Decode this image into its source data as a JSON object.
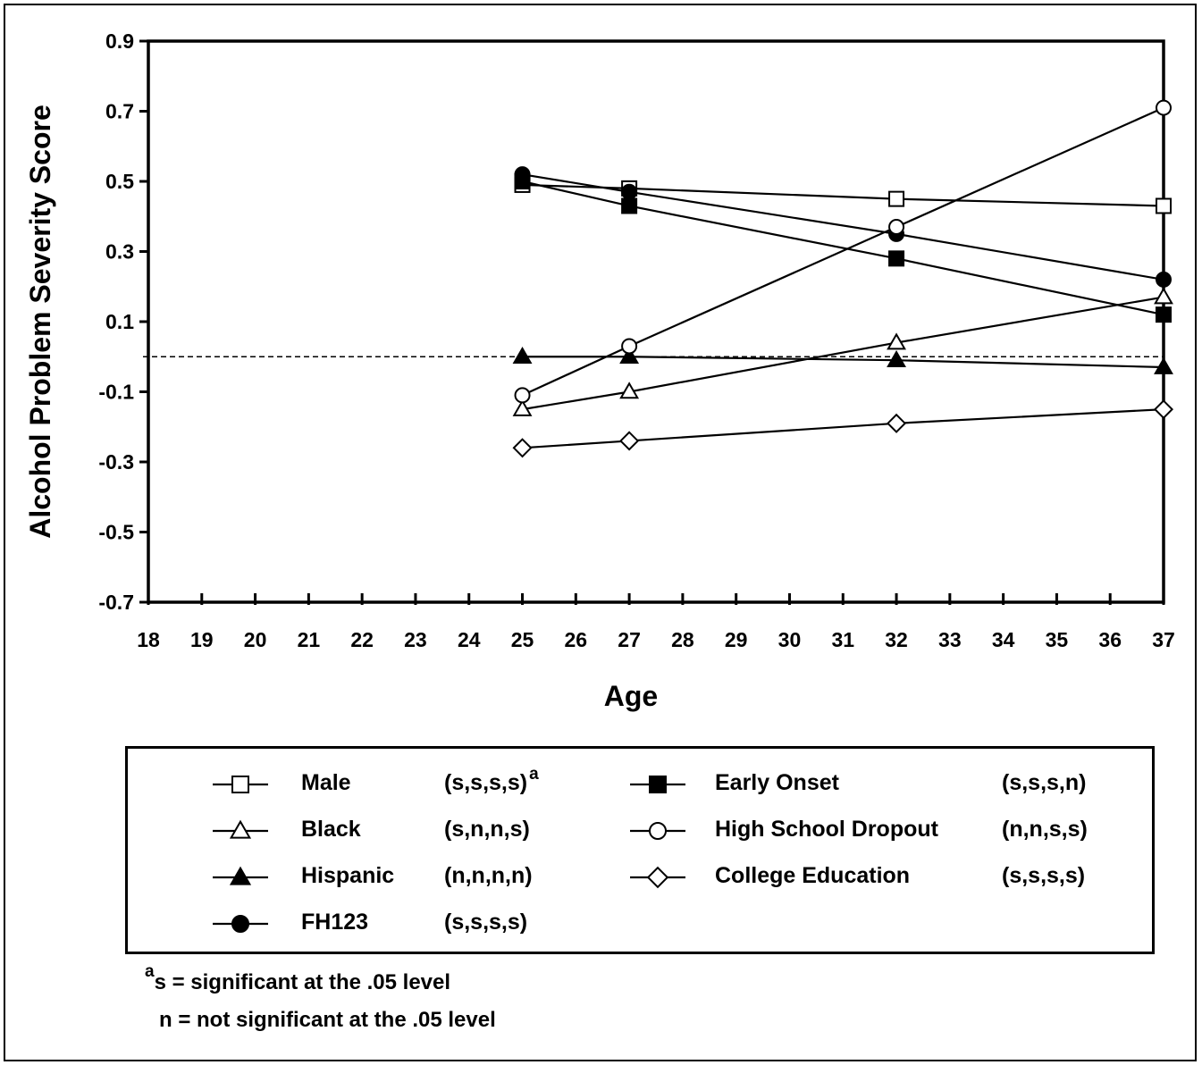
{
  "chart_data": {
    "type": "line",
    "xlabel": "Age",
    "ylabel": "Alcohol Problem Severity Score",
    "xlim": [
      18,
      37
    ],
    "ylim": [
      -0.7,
      0.9
    ],
    "xticks": [
      18,
      19,
      20,
      21,
      22,
      23,
      24,
      25,
      26,
      27,
      28,
      29,
      30,
      31,
      32,
      33,
      34,
      35,
      36,
      37
    ],
    "yticks": [
      "0.9",
      "0.7",
      "0.5",
      "0.3",
      "0.1",
      "-0.1",
      "-0.3",
      "-0.5",
      "-0.7"
    ],
    "reference_line": 0,
    "x": [
      25,
      27,
      32,
      37
    ],
    "series": [
      {
        "name": "Male",
        "marker": "square-open",
        "significance": "(s,s,s,s)",
        "sup": "a",
        "values": [
          0.49,
          0.48,
          0.45,
          0.43
        ]
      },
      {
        "name": "Black",
        "marker": "triangle-open",
        "significance": "(s,n,n,s)",
        "values": [
          -0.15,
          -0.1,
          0.04,
          0.17
        ]
      },
      {
        "name": "Hispanic",
        "marker": "triangle-filled",
        "significance": "(n,n,n,n)",
        "values": [
          0.0,
          0.0,
          -0.01,
          -0.03
        ]
      },
      {
        "name": "FH123",
        "marker": "circle-filled",
        "significance": "(s,s,s,s)",
        "values": [
          0.52,
          0.47,
          0.35,
          0.22
        ]
      },
      {
        "name": "Early Onset",
        "marker": "square-filled",
        "significance": "(s,s,s,n)",
        "values": [
          0.5,
          0.43,
          0.28,
          0.12
        ]
      },
      {
        "name": "High School Dropout",
        "marker": "circle-open",
        "significance": "(n,n,s,s)",
        "values": [
          -0.11,
          0.03,
          0.37,
          0.71
        ]
      },
      {
        "name": "College Education",
        "marker": "diamond-open",
        "significance": "(s,s,s,s)",
        "values": [
          -0.26,
          -0.24,
          -0.19,
          -0.15
        ]
      }
    ]
  },
  "footnote": {
    "sup": "a",
    "line1": "s = significant at the .05 level",
    "line2": "n = not significant at the .05 level"
  }
}
